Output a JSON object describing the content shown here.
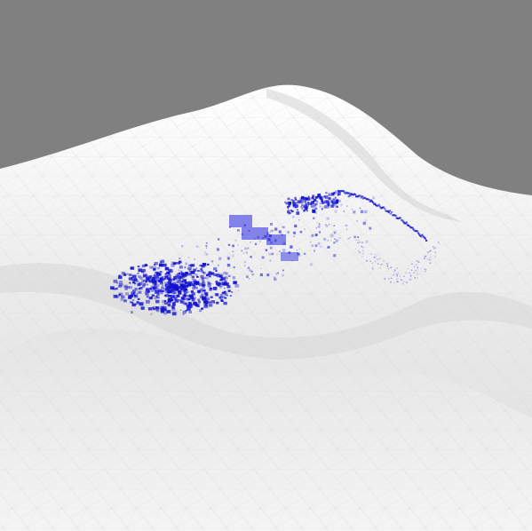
{
  "viewport": {
    "background_color": "#808080"
  },
  "surface": {
    "color_light": "#ffffff",
    "color_mid": "#e6e6e6",
    "color_shade": "#cfcfcf",
    "color_dark": "#b8b8b8"
  },
  "overlay": {
    "dot_color": "#1010d0",
    "patch_color": "#6f6fe6",
    "icon": "particle-cluster"
  }
}
